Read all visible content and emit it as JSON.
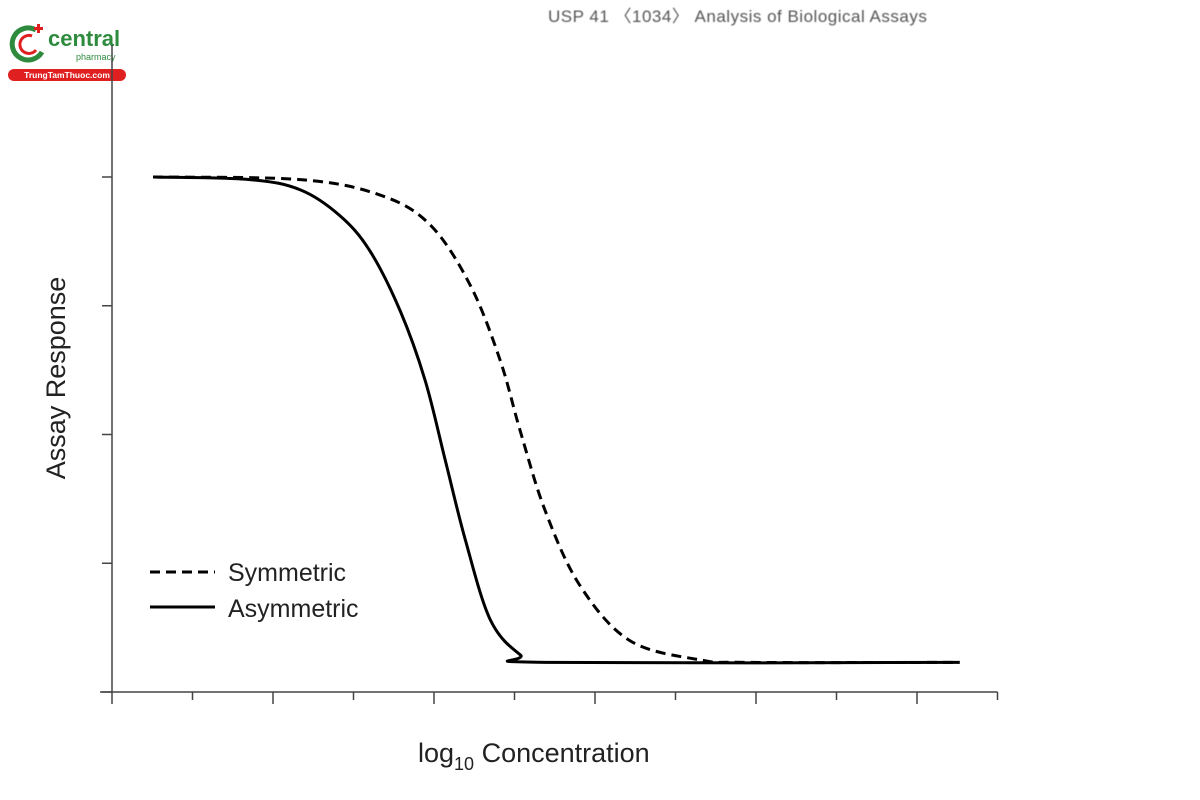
{
  "header": {
    "text": "USP 41 〈1034〉 Analysis of Biological Assays"
  },
  "logo": {
    "name": "central",
    "sub": "pharmacy",
    "badge": "TrungTamThuoc.com",
    "green": "#2e8b3e",
    "red": "#e02020"
  },
  "chart_data": {
    "type": "line",
    "title": "",
    "xlabel": "log10 Concentration",
    "xlabel_main": "log",
    "xlabel_sub": "10",
    "xlabel_rest": " Concentration",
    "ylabel": "Assay Response",
    "xlim": [
      0,
      11
    ],
    "ylim": [
      0,
      5
    ],
    "x_ticks": [
      0,
      1,
      2,
      3,
      4,
      5,
      6,
      7,
      8,
      9,
      10,
      11
    ],
    "y_ticks": [
      0,
      1,
      2,
      3,
      4
    ],
    "tick_labels_shown": false,
    "grid": false,
    "legend_position": "bottom-left",
    "series": [
      {
        "name": "Symmetric",
        "style": "dashed",
        "color": "#000000",
        "x": [
          0.51,
          2.34,
          3.33,
          3.95,
          4.45,
          4.82,
          5.07,
          5.38,
          5.81,
          6.43,
          7.3,
          7.93,
          10.53
        ],
        "y": [
          4.0,
          3.98,
          3.86,
          3.63,
          3.16,
          2.58,
          2.03,
          1.41,
          0.83,
          0.4,
          0.25,
          0.23,
          0.23
        ]
      },
      {
        "name": "Asymmetric",
        "style": "solid",
        "color": "#000000",
        "x": [
          0.51,
          1.71,
          2.34,
          2.83,
          3.2,
          3.58,
          3.89,
          4.14,
          4.39,
          4.7,
          5.07,
          5.38,
          10.53
        ],
        "y": [
          4.0,
          3.98,
          3.9,
          3.7,
          3.43,
          2.96,
          2.42,
          1.8,
          1.18,
          0.56,
          0.29,
          0.23,
          0.23
        ]
      }
    ]
  }
}
